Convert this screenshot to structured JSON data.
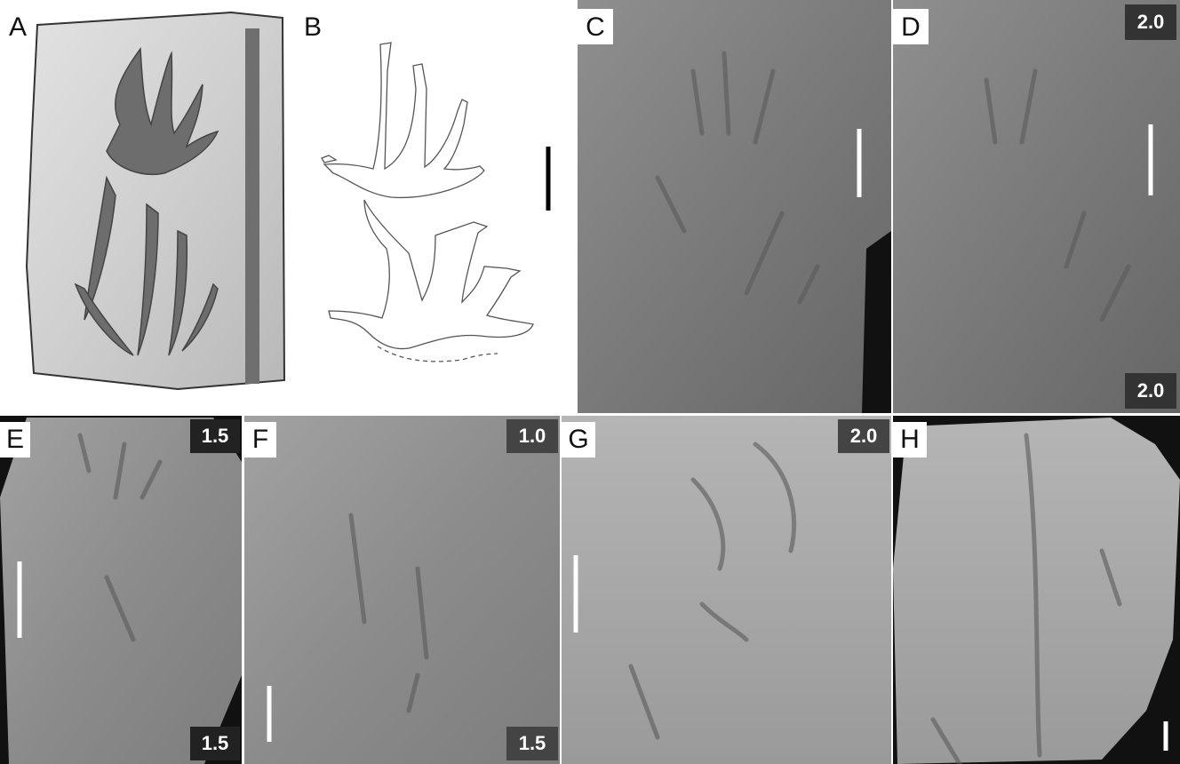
{
  "panels": [
    {
      "label": "A"
    },
    {
      "label": "B"
    },
    {
      "label": "C"
    },
    {
      "label": "D",
      "top_badge": "2.0",
      "bottom_badge": "2.0"
    },
    {
      "label": "E",
      "top_badge": "1.5",
      "bottom_badge": "1.5"
    },
    {
      "label": "F",
      "top_badge": "1.0",
      "bottom_badge": "1.5"
    },
    {
      "label": "G",
      "top_badge": "2.0"
    },
    {
      "label": "H"
    }
  ]
}
